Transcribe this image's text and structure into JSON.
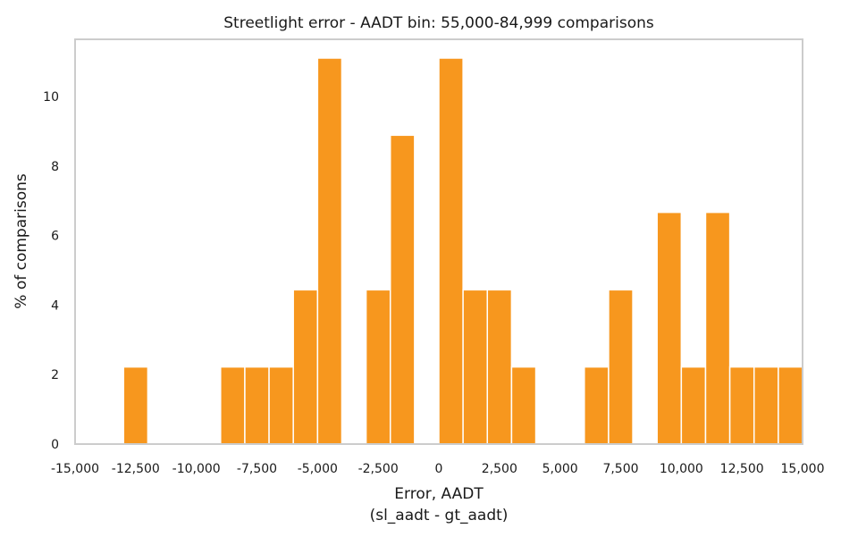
{
  "chart_data": {
    "type": "bar",
    "title": "Streetlight error - AADT bin: 55,000-84,999 comparisons",
    "xlabel_line1": "Error, AADT",
    "xlabel_line2": "(sl_aadt - gt_aadt)",
    "ylabel": "% of comparisons",
    "xlim": [
      -15000,
      15000
    ],
    "ylim": [
      0,
      11.65
    ],
    "bin_width": 1000,
    "bin_start": -15000,
    "values": [
      0,
      0,
      2.22,
      0,
      0,
      0,
      2.22,
      2.22,
      2.22,
      4.44,
      11.11,
      0,
      4.44,
      8.89,
      0,
      11.11,
      4.44,
      4.44,
      2.22,
      0,
      0,
      2.22,
      4.44,
      0,
      6.67,
      2.22,
      6.67,
      2.22,
      2.22,
      2.22
    ],
    "x_ticks": [
      -15000,
      -12500,
      -10000,
      -7500,
      -5000,
      -2500,
      0,
      2500,
      5000,
      7500,
      10000,
      12500,
      15000
    ],
    "x_tick_labels": [
      "-15,000",
      "-12,500",
      "-10,000",
      "-7,500",
      "-5,000",
      "-2,500",
      "0",
      "2,500",
      "5,000",
      "7,500",
      "10,000",
      "12,500",
      "15,000"
    ],
    "y_ticks": [
      0,
      2,
      4,
      6,
      8,
      10
    ],
    "y_tick_labels": [
      "0",
      "2",
      "4",
      "6",
      "8",
      "10"
    ],
    "bar_color": "#f7971e",
    "grid": false
  }
}
